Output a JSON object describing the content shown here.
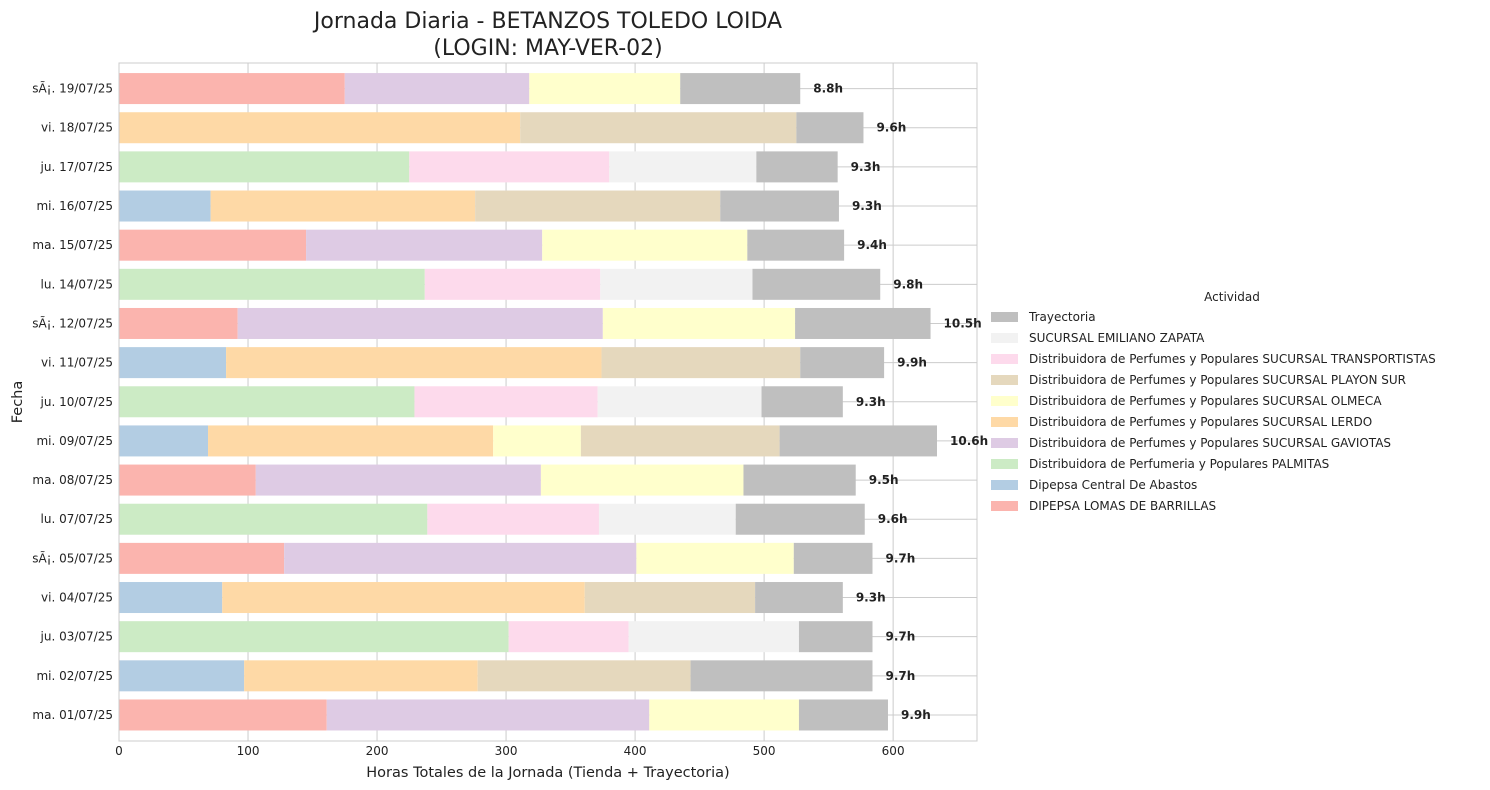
{
  "chart_data": {
    "type": "bar",
    "orientation": "horizontal",
    "stacked": true,
    "title": "Jornada Diaria - BETANZOS TOLEDO LOIDA",
    "subtitle": "(LOGIN: MAY-VER-02)",
    "xlabel": "Horas Totales de la Jornada (Tienda + Trayectoria)",
    "ylabel": "Fecha",
    "xlim": [
      0,
      665
    ],
    "xticks": [
      0,
      100,
      200,
      300,
      400,
      500,
      600
    ],
    "grid": true,
    "legend": {
      "title": "Actividad",
      "placement": "right"
    },
    "categories": [
      "sÃ¡. 19/07/25",
      "vi. 18/07/25",
      "ju. 17/07/25",
      "mi. 16/07/25",
      "ma. 15/07/25",
      "lu. 14/07/25",
      "sÃ¡. 12/07/25",
      "vi. 11/07/25",
      "ju. 10/07/25",
      "mi. 09/07/25",
      "ma. 08/07/25",
      "lu. 07/07/25",
      "sÃ¡. 05/07/25",
      "vi. 04/07/25",
      "ju. 03/07/25",
      "mi. 02/07/25",
      "ma. 01/07/25"
    ],
    "totals_labels": [
      "8.8h",
      "9.6h",
      "9.3h",
      "9.3h",
      "9.4h",
      "9.8h",
      "10.5h",
      "9.9h",
      "9.3h",
      "10.6h",
      "9.5h",
      "9.6h",
      "9.7h",
      "9.3h",
      "9.7h",
      "9.7h",
      "9.9h"
    ],
    "series": [
      {
        "name": "DIPEPSA LOMAS DE BARRILLAS",
        "color": "#fbb4ae",
        "values": [
          175,
          0,
          0,
          0,
          145,
          0,
          92,
          0,
          0,
          0,
          106,
          0,
          128,
          0,
          0,
          0,
          161
        ]
      },
      {
        "name": "Dipepsa Central De Abastos",
        "color": "#b3cde3",
        "values": [
          0,
          0,
          0,
          71,
          0,
          0,
          0,
          83,
          0,
          69,
          0,
          0,
          0,
          80,
          0,
          97,
          0
        ]
      },
      {
        "name": "Distribuidora de Perfumeria y Populares PALMITAS",
        "color": "#ccebc5",
        "values": [
          0,
          0,
          225,
          0,
          0,
          237,
          0,
          0,
          229,
          0,
          0,
          239,
          0,
          0,
          302,
          0,
          0
        ]
      },
      {
        "name": "Distribuidora de Perfumes y Populares SUCURSAL GAVIOTAS",
        "color": "#decbe4",
        "values": [
          143,
          0,
          0,
          0,
          183,
          0,
          283,
          0,
          0,
          0,
          221,
          0,
          273,
          0,
          0,
          0,
          250
        ]
      },
      {
        "name": "Distribuidora de Perfumes y Populares SUCURSAL LERDO",
        "color": "#fed9a6",
        "values": [
          0,
          311,
          0,
          205,
          0,
          0,
          0,
          291,
          0,
          221,
          0,
          0,
          0,
          281,
          0,
          181,
          0
        ]
      },
      {
        "name": "Distribuidora de Perfumes y Populares SUCURSAL OLMECA",
        "color": "#ffffcc",
        "values": [
          117,
          0,
          0,
          0,
          159,
          0,
          149,
          0,
          0,
          68,
          157,
          0,
          122,
          0,
          0,
          0,
          116
        ]
      },
      {
        "name": "Distribuidora de Perfumes y Populares SUCURSAL PLAYON SUR",
        "color": "#e5d8bd",
        "values": [
          0,
          214,
          0,
          190,
          0,
          0,
          0,
          154,
          0,
          154,
          0,
          0,
          0,
          132,
          0,
          165,
          0
        ]
      },
      {
        "name": "Distribuidora de Perfumes y Populares SUCURSAL TRANSPORTISTAS",
        "color": "#fddaec",
        "values": [
          0,
          0,
          155,
          0,
          0,
          136,
          0,
          0,
          142,
          0,
          0,
          133,
          0,
          0,
          93,
          0,
          0
        ]
      },
      {
        "name": "SUCURSAL EMILIANO ZAPATA",
        "color": "#f2f2f2",
        "values": [
          0,
          0,
          114,
          0,
          0,
          118,
          0,
          0,
          127,
          0,
          0,
          106,
          0,
          0,
          132,
          0,
          0
        ]
      },
      {
        "name": "Trayectoria",
        "color": "#bfbfbf",
        "values": [
          93,
          52,
          63,
          92,
          75,
          99,
          105,
          65,
          63,
          122,
          87,
          100,
          61,
          68,
          57,
          141,
          69
        ]
      }
    ]
  }
}
